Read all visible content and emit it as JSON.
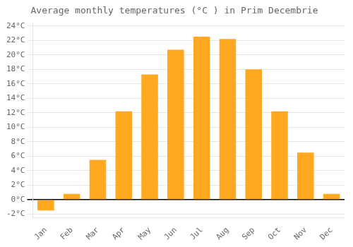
{
  "chart_data": {
    "type": "bar",
    "title": "Average monthly temperatures (°C ) in Prim Decembrie",
    "categories": [
      "Jan",
      "Feb",
      "Mar",
      "Apr",
      "May",
      "Jun",
      "Jul",
      "Aug",
      "Sep",
      "Oct",
      "Nov",
      "Dec"
    ],
    "values": [
      -1.5,
      0.8,
      5.5,
      12.2,
      17.3,
      20.7,
      22.5,
      22.2,
      18.0,
      12.2,
      6.5,
      0.8
    ],
    "color": "#FFA820",
    "ylim": [
      -2.5,
      24.5
    ],
    "yticks": [
      {
        "value": -2,
        "label": "-2°C"
      },
      {
        "value": 0,
        "label": "0°C"
      },
      {
        "value": 2,
        "label": "2°C"
      },
      {
        "value": 4,
        "label": "4°C"
      },
      {
        "value": 6,
        "label": "6°C"
      },
      {
        "value": 8,
        "label": "8°C"
      },
      {
        "value": 10,
        "label": "10°C"
      },
      {
        "value": 12,
        "label": "12°C"
      },
      {
        "value": 14,
        "label": "14°C"
      },
      {
        "value": 16,
        "label": "16°C"
      },
      {
        "value": 18,
        "label": "18°C"
      },
      {
        "value": 20,
        "label": "20°C"
      },
      {
        "value": 22,
        "label": "22°C"
      },
      {
        "value": 24,
        "label": "24°C"
      }
    ],
    "grid": true
  }
}
